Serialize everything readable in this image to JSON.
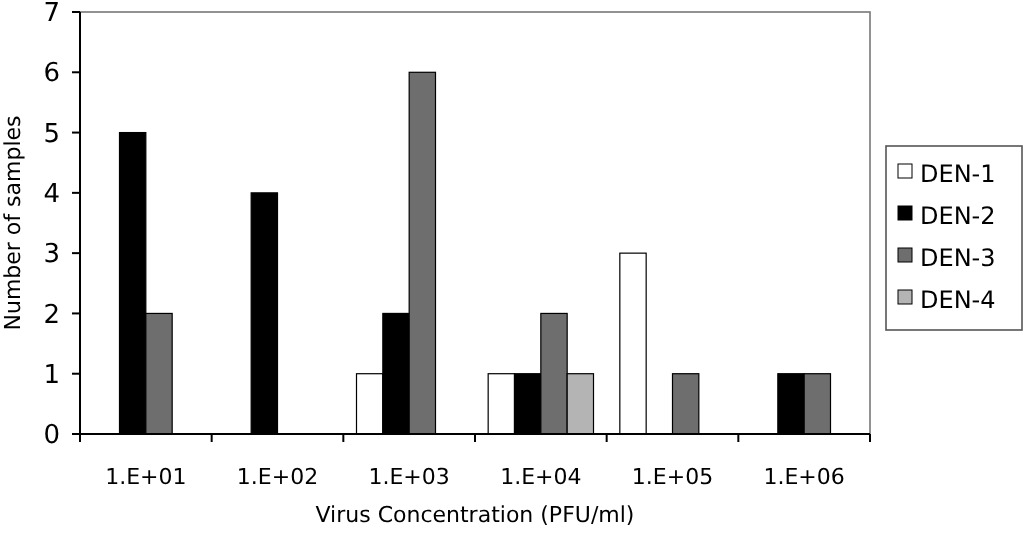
{
  "chart_data": {
    "type": "bar",
    "xlabel": "Virus Concentration (PFU/ml)",
    "ylabel": "Number of samples",
    "categories": [
      "1.E+01",
      "1.E+02",
      "1.E+03",
      "1.E+04",
      "1.E+05",
      "1.E+06"
    ],
    "series": [
      {
        "name": "DEN-1",
        "color": "#ffffff",
        "values": [
          0,
          0,
          1,
          1,
          3,
          0
        ]
      },
      {
        "name": "DEN-2",
        "color": "#000000",
        "values": [
          5,
          4,
          2,
          1,
          0,
          1
        ]
      },
      {
        "name": "DEN-3",
        "color": "#6e6e6e",
        "values": [
          2,
          0,
          6,
          2,
          1,
          1
        ]
      },
      {
        "name": "DEN-4",
        "color": "#b4b4b4",
        "values": [
          0,
          0,
          0,
          1,
          0,
          0
        ]
      }
    ],
    "ylim": [
      0,
      7
    ],
    "yticks": [
      0,
      1,
      2,
      3,
      4,
      5,
      6,
      7
    ],
    "grid": false,
    "legend": "right"
  }
}
